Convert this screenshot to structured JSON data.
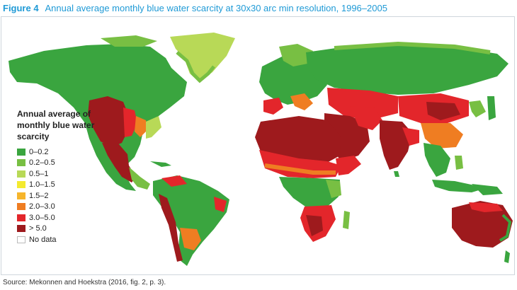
{
  "figure": {
    "label": "Figure 4",
    "title": "Annual average monthly blue water scarcity at 30x30 arc min resolution, 1996–2005"
  },
  "legend": {
    "title": "Annual average of monthly blue water scarcity",
    "items": [
      {
        "label": "0–0.2",
        "color": "#3aa53f"
      },
      {
        "label": "0.2–0.5",
        "color": "#78bf43"
      },
      {
        "label": "0.5–1",
        "color": "#b8d957"
      },
      {
        "label": "1.0–1.5",
        "color": "#f4ea2f"
      },
      {
        "label": "1.5–2",
        "color": "#f6b52c"
      },
      {
        "label": "2.0–3.0",
        "color": "#ef7d22"
      },
      {
        "label": "3.0–5.0",
        "color": "#e3262b"
      },
      {
        "label": "> 5.0",
        "color": "#9e1a1d"
      },
      {
        "label": "No data",
        "color": "#ffffff"
      }
    ]
  },
  "source": "Source: Mekonnen and Hoekstra (2016, fig. 2, p. 3)."
}
